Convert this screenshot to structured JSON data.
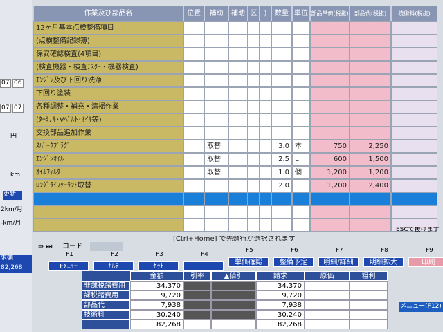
{
  "table": {
    "headers": [
      "作業及び部品名",
      "位置",
      "補助",
      "補助",
      "区",
      ")",
      "数量",
      "単位",
      "部品単価(税抜)",
      "部品代(税抜)",
      "技術料(税抜)"
    ],
    "rows": [
      {
        "name": "12ヶ月基本点検整備項目"
      },
      {
        "name": "(点検整備記録簿)"
      },
      {
        "name": "保安確認検査(4項目)"
      },
      {
        "name": "(検査機器・検査ﾃｽﾀｰ・機器検査)"
      },
      {
        "name": "ｴﾝｼﾞﾝ及び下回り洗浄"
      },
      {
        "name": "下回り塗装"
      },
      {
        "name": "各種調整・補充・清掃作業"
      },
      {
        "name": "(ﾀｰﾐﾅﾙ･Vﾍﾞﾙﾄ･ｵｲﾙ等)"
      },
      {
        "name": "交換部品追加作業"
      },
      {
        "name": "ｽﾊﾟｰｸﾌﾟﾗｸﾞ",
        "aux": "取替",
        "qty": "3.0",
        "unit": "本",
        "price": "750",
        "amount": "2,250"
      },
      {
        "name": "ｴﾝｼﾞﾝｵｲﾙ",
        "aux": "取替",
        "qty": "2.5",
        "unit": "L",
        "price": "600",
        "amount": "1,500"
      },
      {
        "name": "ｵｲﾙﾌｨﾙﾀ",
        "aux": "取替",
        "qty": "1.0",
        "unit": "個",
        "price": "1,200",
        "amount": "1,200"
      },
      {
        "name": "ﾛﾝｸﾞﾗｲﾌｸｰﾗﾝﾄ取替",
        "qty": "2.0",
        "unit": "L",
        "price": "1,200",
        "amount": "2,400"
      }
    ]
  },
  "status": {
    "hint": "[Ctrl+Home] で先頭行が選択されます",
    "esc": "ESCで抜けます",
    "code": "コード"
  },
  "fkeys": [
    {
      "key": "F1",
      "label": "Fﾒﾆｭｰ"
    },
    {
      "key": "F2",
      "label": "ｶﾙﾃ"
    },
    {
      "key": "F3",
      "label": "ｾｯﾄ"
    },
    {
      "key": "F4"
    },
    {
      "key": "F5",
      "label": "単価確認"
    },
    {
      "key": "F6",
      "label": "整備予定"
    },
    {
      "key": "F7",
      "label": "明細/詳細"
    },
    {
      "key": "F8",
      "label": "明細拡大"
    },
    {
      "key": "F9",
      "label": "印刷"
    }
  ],
  "summary": {
    "headers": [
      "金額",
      "引率",
      "▲値引",
      "請求",
      "原価",
      "粗利"
    ],
    "rows": [
      {
        "label": "非課税諸費用",
        "amount": "34,370",
        "billed": "34,370"
      },
      {
        "label": "課税諸費用",
        "amount": "9,720",
        "billed": "9,720"
      },
      {
        "label": "部品代",
        "amount": "7,938",
        "billed": "7,938"
      },
      {
        "label": "技術料",
        "amount": "30,240",
        "billed": "30,240"
      },
      {
        "amount": "82,268",
        "billed": "82,268"
      }
    ]
  },
  "sidebar": {
    "texts": [
      "07",
      "06",
      "07",
      "07",
      "円",
      "km",
      "更新",
      "2km/月",
      "-km/月",
      "求額",
      "82,268"
    ]
  },
  "menu": "メニュー(F12)"
}
